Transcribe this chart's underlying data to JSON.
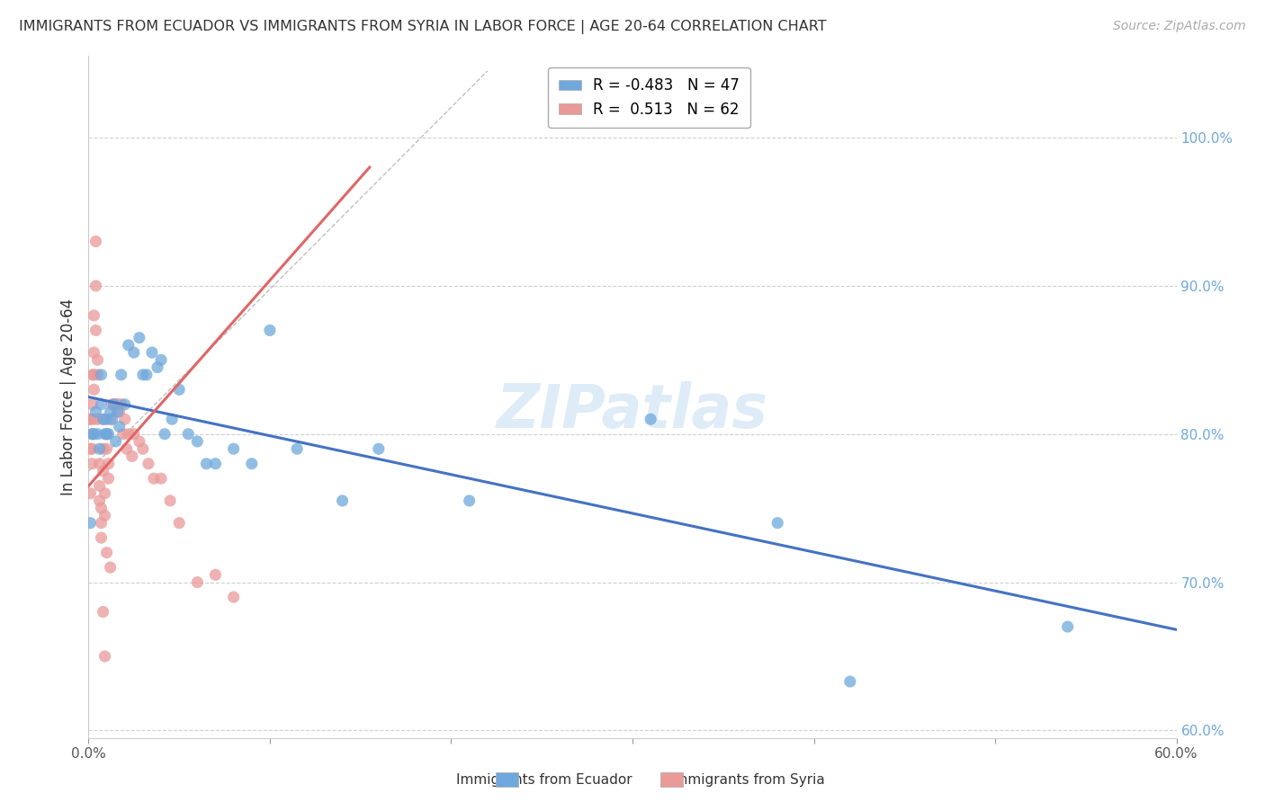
{
  "title": "IMMIGRANTS FROM ECUADOR VS IMMIGRANTS FROM SYRIA IN LABOR FORCE | AGE 20-64 CORRELATION CHART",
  "source": "Source: ZipAtlas.com",
  "ylabel": "In Labor Force | Age 20-64",
  "xlim": [
    0.0,
    0.6
  ],
  "ylim": [
    0.595,
    1.055
  ],
  "ecuador_color": "#6fa8dc",
  "syria_color": "#ea9999",
  "ecuador_line_color": "#4472c4",
  "syria_line_color": "#e06666",
  "dashed_line_color": "#c0c0c0",
  "watermark_text": "ZIPatlas",
  "legend_r_ecuador": "-0.483",
  "legend_n_ecuador": "47",
  "legend_r_syria": "0.513",
  "legend_n_syria": "62",
  "ecuador_points_x": [
    0.001,
    0.002,
    0.003,
    0.004,
    0.005,
    0.006,
    0.007,
    0.007,
    0.008,
    0.009,
    0.01,
    0.01,
    0.011,
    0.012,
    0.013,
    0.014,
    0.015,
    0.016,
    0.017,
    0.018,
    0.02,
    0.022,
    0.025,
    0.028,
    0.03,
    0.032,
    0.035,
    0.038,
    0.04,
    0.042,
    0.046,
    0.05,
    0.055,
    0.06,
    0.065,
    0.07,
    0.08,
    0.09,
    0.1,
    0.115,
    0.14,
    0.16,
    0.21,
    0.31,
    0.42,
    0.54,
    0.38
  ],
  "ecuador_points_y": [
    0.74,
    0.8,
    0.8,
    0.815,
    0.8,
    0.79,
    0.82,
    0.84,
    0.81,
    0.8,
    0.8,
    0.81,
    0.8,
    0.815,
    0.81,
    0.82,
    0.795,
    0.815,
    0.805,
    0.84,
    0.82,
    0.86,
    0.855,
    0.865,
    0.84,
    0.84,
    0.855,
    0.845,
    0.85,
    0.8,
    0.81,
    0.83,
    0.8,
    0.795,
    0.78,
    0.78,
    0.79,
    0.78,
    0.87,
    0.79,
    0.755,
    0.79,
    0.755,
    0.81,
    0.633,
    0.67,
    0.74
  ],
  "syria_points_x": [
    0.001,
    0.001,
    0.001,
    0.001,
    0.002,
    0.002,
    0.002,
    0.002,
    0.002,
    0.003,
    0.003,
    0.003,
    0.003,
    0.003,
    0.004,
    0.004,
    0.004,
    0.005,
    0.005,
    0.005,
    0.006,
    0.006,
    0.006,
    0.007,
    0.007,
    0.007,
    0.008,
    0.008,
    0.008,
    0.009,
    0.009,
    0.01,
    0.01,
    0.011,
    0.011,
    0.012,
    0.013,
    0.014,
    0.015,
    0.016,
    0.017,
    0.018,
    0.019,
    0.02,
    0.021,
    0.022,
    0.024,
    0.025,
    0.028,
    0.03,
    0.033,
    0.036,
    0.04,
    0.045,
    0.05,
    0.06,
    0.07,
    0.08,
    0.01,
    0.012,
    0.008,
    0.009
  ],
  "syria_points_y": [
    0.81,
    0.81,
    0.79,
    0.76,
    0.84,
    0.82,
    0.8,
    0.79,
    0.78,
    0.88,
    0.855,
    0.84,
    0.83,
    0.81,
    0.93,
    0.9,
    0.87,
    0.85,
    0.84,
    0.81,
    0.78,
    0.765,
    0.755,
    0.75,
    0.74,
    0.73,
    0.81,
    0.79,
    0.775,
    0.76,
    0.745,
    0.8,
    0.79,
    0.78,
    0.77,
    0.81,
    0.82,
    0.82,
    0.82,
    0.82,
    0.815,
    0.82,
    0.8,
    0.81,
    0.79,
    0.8,
    0.785,
    0.8,
    0.795,
    0.79,
    0.78,
    0.77,
    0.77,
    0.755,
    0.74,
    0.7,
    0.705,
    0.69,
    0.72,
    0.71,
    0.68,
    0.65
  ],
  "ecuador_trendline_x": [
    0.0,
    0.6
  ],
  "ecuador_trendline_y": [
    0.825,
    0.668
  ],
  "syria_trendline_x": [
    0.0,
    0.155
  ],
  "syria_trendline_y": [
    0.765,
    0.98
  ],
  "diagonal_line_x": [
    0.0,
    0.22
  ],
  "diagonal_line_y": [
    0.775,
    1.045
  ],
  "x_tick_positions": [
    0.0,
    0.1,
    0.2,
    0.3,
    0.4,
    0.5,
    0.6
  ],
  "x_tick_labels": [
    "0.0%",
    "",
    "",
    "",
    "",
    "",
    "60.0%"
  ],
  "y_ticks_right": [
    0.6,
    0.7,
    0.8,
    0.9,
    1.0
  ],
  "y_tick_labels_right": [
    "60.0%",
    "70.0%",
    "80.0%",
    "90.0%",
    "100.0%"
  ]
}
